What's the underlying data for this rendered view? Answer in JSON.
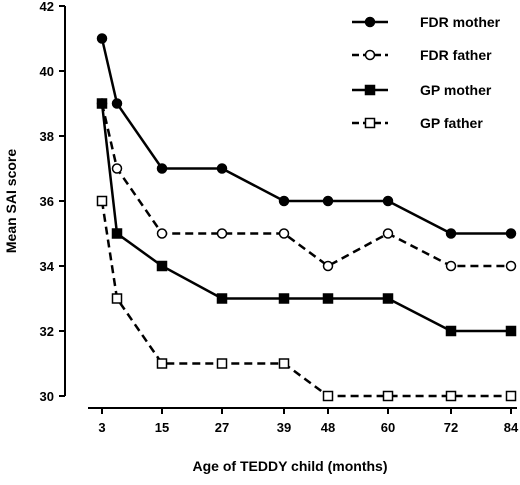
{
  "chart_data": {
    "type": "line",
    "title": "",
    "xlabel": "Age of TEDDY child (months)",
    "ylabel": "Mean SAI score",
    "ylim": [
      30,
      42
    ],
    "yticks": [
      30,
      32,
      34,
      36,
      38,
      40,
      42
    ],
    "x": [
      3,
      6,
      15,
      27,
      39,
      48,
      60,
      72,
      84
    ],
    "xtick_labels": [
      "3",
      "15",
      "27",
      "39",
      "48",
      "60",
      "72",
      "84"
    ],
    "grid": false,
    "legend_position": "top-right",
    "series": [
      {
        "name": "FDR mother",
        "values": [
          41,
          39,
          37,
          37,
          36,
          36,
          36,
          35,
          35
        ],
        "marker": "filled-circle",
        "line": "solid",
        "color": "#000000"
      },
      {
        "name": "FDR father",
        "values": [
          39,
          37,
          35,
          35,
          35,
          34,
          35,
          34,
          34
        ],
        "marker": "open-circle",
        "line": "dashed",
        "color": "#000000"
      },
      {
        "name": "GP mother",
        "values": [
          39,
          35,
          34,
          33,
          33,
          33,
          33,
          32,
          32
        ],
        "marker": "filled-square",
        "line": "solid",
        "color": "#000000"
      },
      {
        "name": "GP father",
        "values": [
          36,
          33,
          31,
          31,
          31,
          30,
          30,
          30,
          30
        ],
        "marker": "open-square",
        "line": "dashed",
        "color": "#000000"
      }
    ]
  }
}
